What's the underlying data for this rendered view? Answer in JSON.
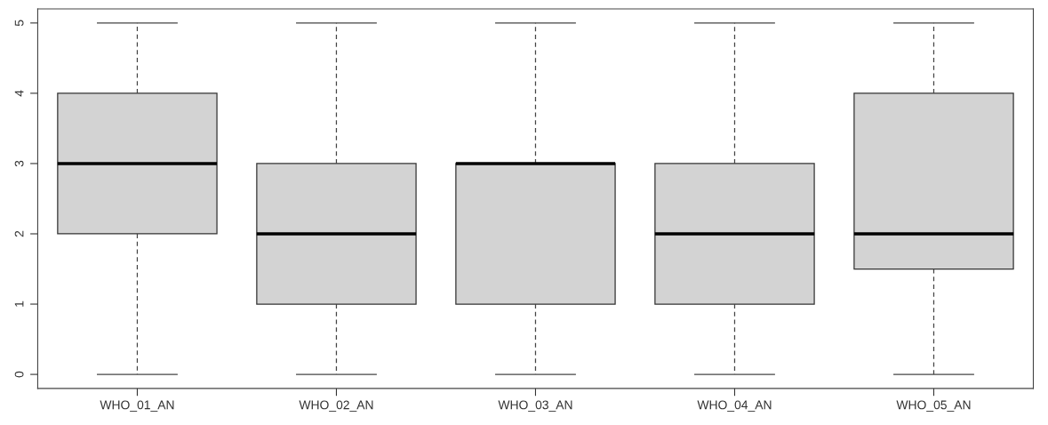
{
  "chart_data": {
    "type": "box",
    "categories": [
      "WHO_01_AN",
      "WHO_02_AN",
      "WHO_03_AN",
      "WHO_04_AN",
      "WHO_05_AN"
    ],
    "boxes": [
      {
        "low": 0,
        "q1": 2,
        "median": 3,
        "q3": 4,
        "high": 5
      },
      {
        "low": 0,
        "q1": 1,
        "median": 2,
        "q3": 3,
        "high": 5
      },
      {
        "low": 0,
        "q1": 1,
        "median": 3,
        "q3": 3,
        "high": 5
      },
      {
        "low": 0,
        "q1": 1,
        "median": 2,
        "q3": 3,
        "high": 5
      },
      {
        "low": 0,
        "q1": 1.5,
        "median": 2,
        "q3": 4,
        "high": 5
      }
    ],
    "color": "#d3d3d3",
    "ylim": [
      -0.2,
      5.2
    ],
    "yticks": [
      0,
      1,
      2,
      3,
      4,
      5
    ],
    "grid": false
  }
}
